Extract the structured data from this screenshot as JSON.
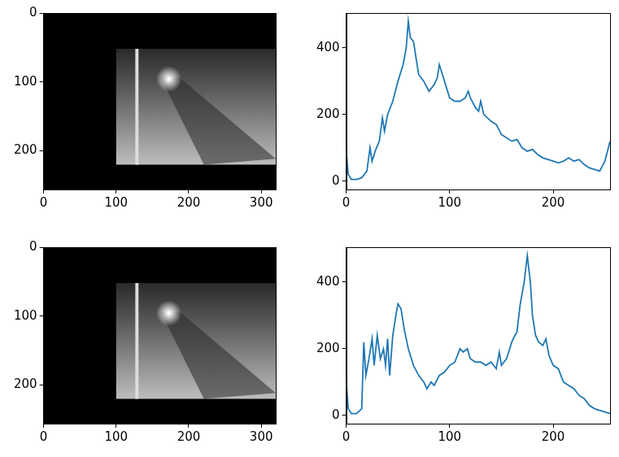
{
  "chart_data": [
    {
      "type": "image",
      "xlim": [
        0,
        320
      ],
      "ylim": [
        256,
        0
      ],
      "xticks": [
        0,
        100,
        200,
        300
      ],
      "yticks": [
        0,
        100,
        200
      ],
      "content_box": {
        "x": [
          100,
          320
        ],
        "y": [
          52,
          220
        ]
      },
      "grid": false
    },
    {
      "type": "line",
      "color": "#1f77b4",
      "xlim": [
        0,
        255
      ],
      "ylim": [
        -25,
        505
      ],
      "xticks": [
        0,
        100,
        200
      ],
      "yticks": [
        0,
        200,
        400
      ],
      "grid": false,
      "x": [
        0,
        2,
        5,
        10,
        15,
        20,
        23,
        25,
        28,
        32,
        35,
        37,
        40,
        45,
        50,
        55,
        58,
        60,
        62,
        65,
        68,
        70,
        75,
        80,
        85,
        88,
        90,
        93,
        97,
        100,
        105,
        110,
        115,
        118,
        120,
        125,
        128,
        130,
        133,
        140,
        145,
        150,
        155,
        160,
        165,
        170,
        175,
        180,
        185,
        190,
        195,
        200,
        205,
        210,
        215,
        220,
        225,
        230,
        235,
        240,
        245,
        250,
        255
      ],
      "values": [
        90,
        20,
        5,
        5,
        10,
        30,
        100,
        60,
        90,
        120,
        190,
        150,
        200,
        240,
        300,
        350,
        400,
        480,
        430,
        420,
        360,
        320,
        300,
        270,
        290,
        310,
        350,
        320,
        280,
        250,
        240,
        240,
        250,
        270,
        250,
        220,
        210,
        240,
        200,
        180,
        170,
        140,
        130,
        120,
        125,
        100,
        90,
        95,
        80,
        70,
        65,
        60,
        55,
        60,
        70,
        60,
        65,
        50,
        40,
        35,
        30,
        60,
        120
      ]
    },
    {
      "type": "image",
      "xlim": [
        0,
        320
      ],
      "ylim": [
        256,
        0
      ],
      "xticks": [
        0,
        100,
        200,
        300
      ],
      "yticks": [
        0,
        100,
        200
      ],
      "content_box": {
        "x": [
          100,
          320
        ],
        "y": [
          52,
          220
        ]
      },
      "grid": false
    },
    {
      "type": "line",
      "color": "#1f77b4",
      "xlim": [
        0,
        255
      ],
      "ylim": [
        -25,
        505
      ],
      "xticks": [
        0,
        100,
        200
      ],
      "yticks": [
        0,
        200,
        400
      ],
      "grid": false,
      "x": [
        0,
        2,
        5,
        10,
        15,
        17,
        19,
        22,
        25,
        27,
        30,
        33,
        36,
        38,
        40,
        42,
        45,
        48,
        50,
        53,
        56,
        60,
        65,
        70,
        75,
        78,
        82,
        85,
        90,
        95,
        100,
        105,
        110,
        113,
        117,
        120,
        125,
        130,
        135,
        140,
        145,
        148,
        150,
        155,
        160,
        163,
        165,
        168,
        172,
        175,
        178,
        180,
        183,
        186,
        190,
        193,
        196,
        200,
        205,
        210,
        215,
        220,
        225,
        230,
        235,
        240,
        245,
        250,
        255
      ],
      "values": [
        100,
        20,
        5,
        5,
        20,
        220,
        120,
        170,
        230,
        150,
        240,
        170,
        200,
        150,
        230,
        120,
        240,
        300,
        335,
        320,
        260,
        200,
        150,
        120,
        100,
        80,
        100,
        90,
        120,
        130,
        150,
        160,
        200,
        190,
        200,
        170,
        160,
        160,
        150,
        160,
        140,
        190,
        150,
        170,
        220,
        240,
        250,
        330,
        400,
        480,
        400,
        300,
        240,
        220,
        210,
        230,
        180,
        150,
        140,
        100,
        90,
        80,
        60,
        50,
        30,
        20,
        15,
        10,
        5
      ]
    }
  ]
}
